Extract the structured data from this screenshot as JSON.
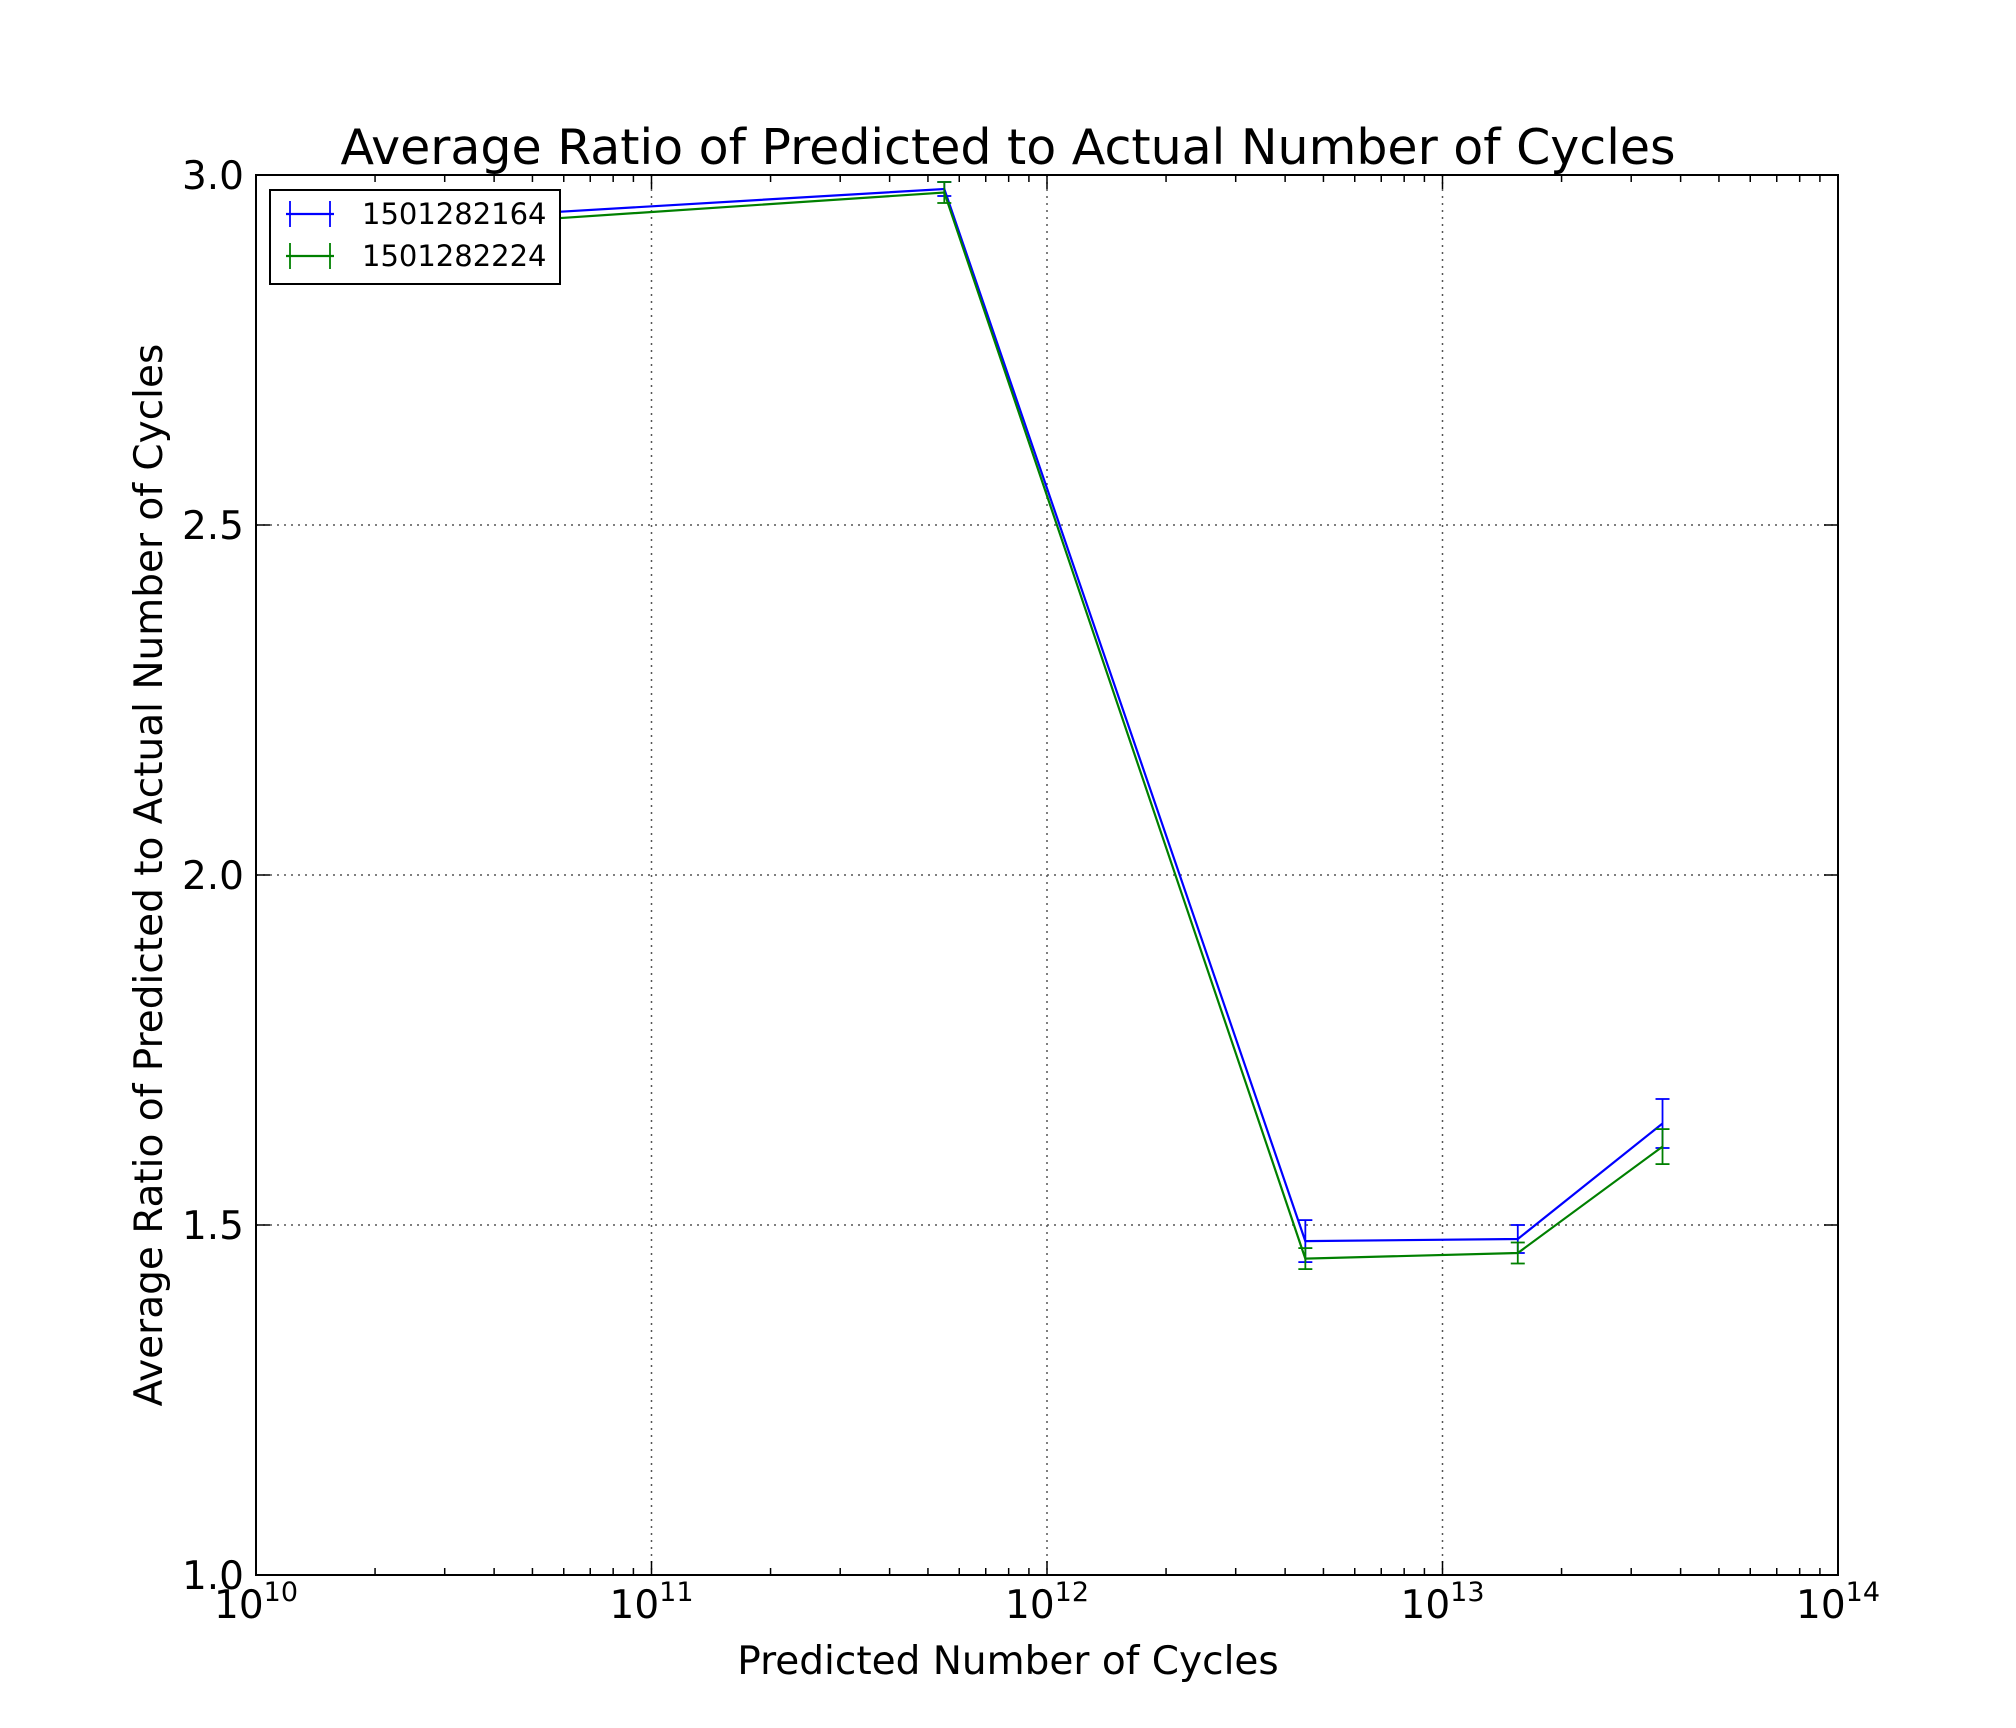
{
  "chart_data": {
    "type": "line",
    "title": "Average Ratio of Predicted to Actual Number of Cycles",
    "xlabel": "Predicted Number of Cycles",
    "ylabel": "Average Ratio of Predicted to Actual Number of Cycles",
    "xscale": "log",
    "xlim": [
      10000000000,
      100000000000000
    ],
    "ylim": [
      1.0,
      3.0
    ],
    "x_ticks": [
      {
        "value": 10000000000,
        "base": "10",
        "exp": "10"
      },
      {
        "value": 100000000000,
        "base": "10",
        "exp": "11"
      },
      {
        "value": 1000000000000,
        "base": "10",
        "exp": "12"
      },
      {
        "value": 10000000000000,
        "base": "10",
        "exp": "13"
      },
      {
        "value": 100000000000000,
        "base": "10",
        "exp": "14"
      }
    ],
    "y_ticks": [
      {
        "value": 1.0,
        "label": "1.0"
      },
      {
        "value": 1.5,
        "label": "1.5"
      },
      {
        "value": 2.0,
        "label": "2.0"
      },
      {
        "value": 2.5,
        "label": "2.5"
      },
      {
        "value": 3.0,
        "label": "3.0"
      }
    ],
    "grid": true,
    "legend_position": "top-left",
    "series": [
      {
        "name": "1501282164",
        "color": "#0000ff",
        "x": [
          35000000000,
          550000000000,
          4500000000000,
          15500000000000,
          36000000000000
        ],
        "y": [
          2.94,
          2.98,
          1.477,
          1.48,
          1.645
        ],
        "yerr": [
          0.01,
          0.01,
          0.03,
          0.02,
          0.035
        ]
      },
      {
        "name": "1501282224",
        "color": "#008000",
        "x": [
          35000000000,
          550000000000,
          4500000000000,
          15500000000000,
          36000000000000
        ],
        "y": [
          2.93,
          2.975,
          1.452,
          1.46,
          1.612
        ],
        "yerr": [
          0.01,
          0.015,
          0.015,
          0.015,
          0.025
        ]
      }
    ]
  }
}
